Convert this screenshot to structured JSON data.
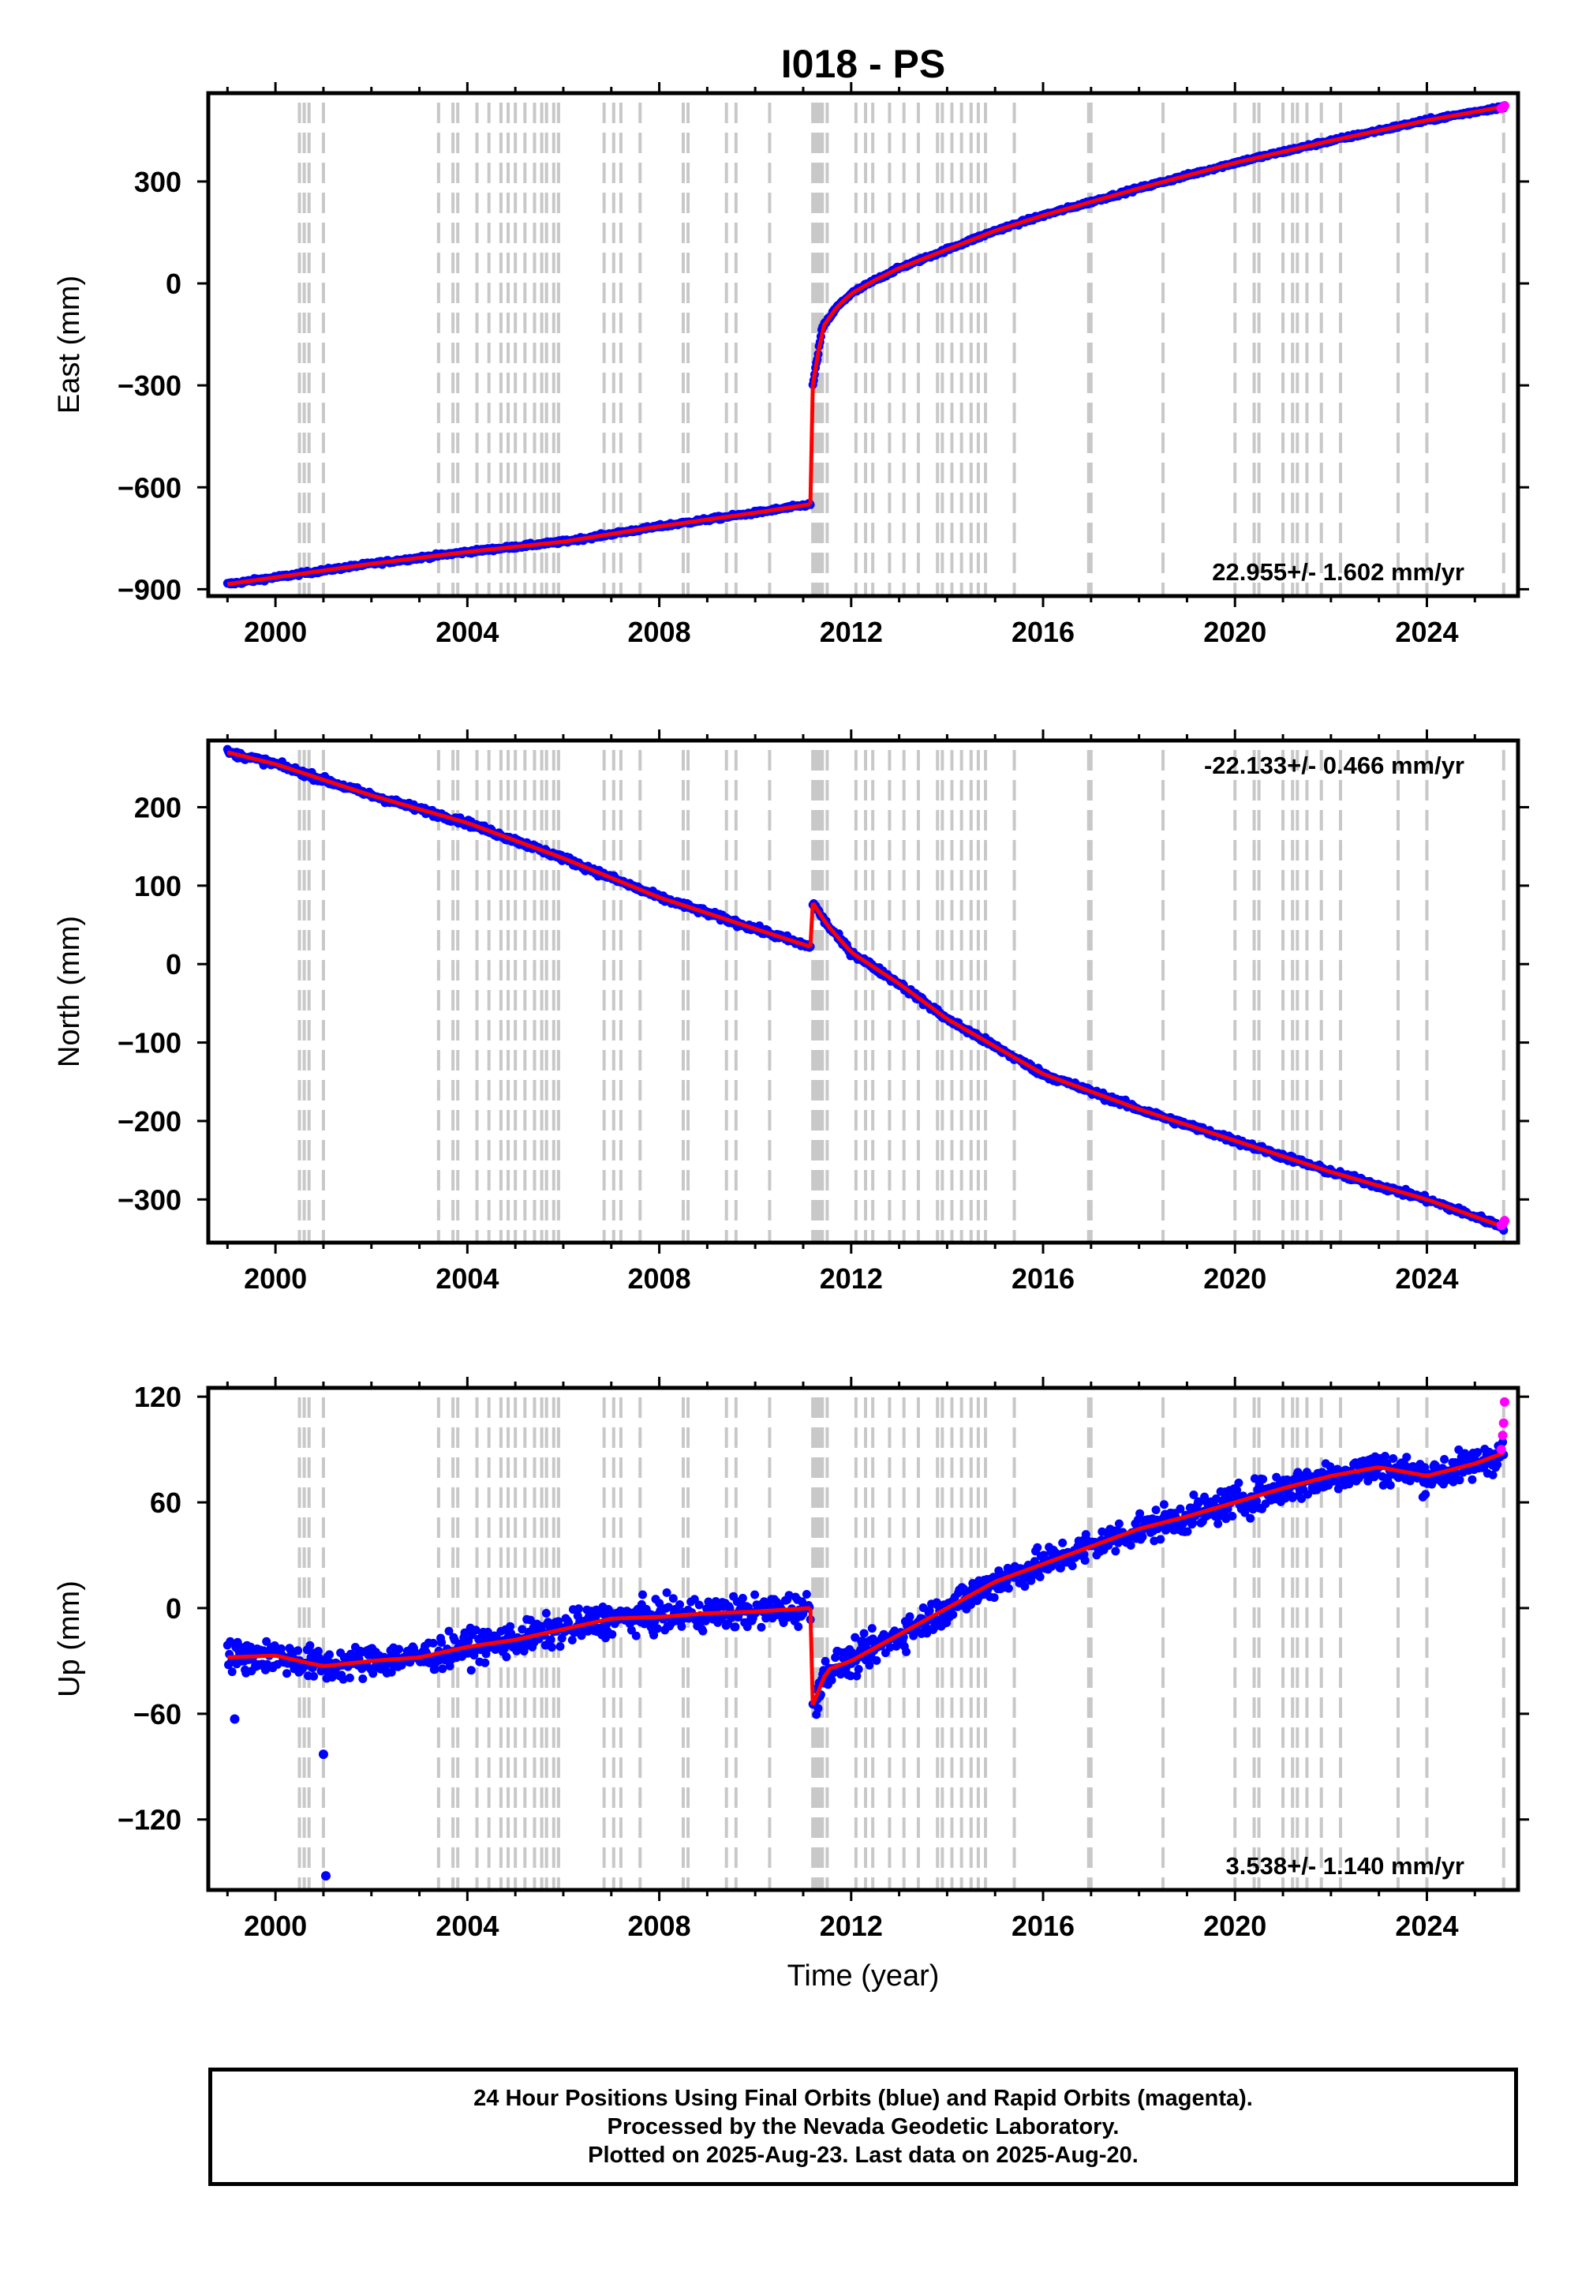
{
  "title": "I018 - PS",
  "xlabel": "Time (year)",
  "footer": {
    "line1": "24 Hour Positions Using Final Orbits (blue) and Rapid Orbits (magenta).",
    "line2": "Processed by the Nevada Geodetic Laboratory.",
    "line3": "Plotted on 2025-Aug-23. Last data on 2025-Aug-20."
  },
  "colors": {
    "final_orbits": "#0000ff",
    "rapid_orbits": "#ff00ff",
    "model": "#ff0000",
    "event_lines": "#c8c8c8"
  },
  "chart_data": [
    {
      "type": "scatter",
      "name": "east",
      "ylabel": "East (mm)",
      "rate_label": "22.955+/- 1.602 mm/yr",
      "rate_position": "bottom-right",
      "xlim": [
        1998.6,
        2025.9
      ],
      "ylim": [
        -920,
        560
      ],
      "yticks": [
        -900,
        -600,
        -300,
        0,
        300
      ],
      "ytick_labels": [
        "−900",
        "−600",
        "−300",
        "0",
        "300"
      ],
      "xticks": [
        2000,
        2004,
        2008,
        2012,
        2016,
        2020,
        2024
      ],
      "xtick_labels": [
        "2000",
        "2004",
        "2008",
        "2012",
        "2016",
        "2020",
        "2024"
      ],
      "series_curve": {
        "pre_x": [
          1999.0,
          2000.0,
          2002.0,
          2004.0,
          2006.0,
          2008.0,
          2010.0,
          2011.15
        ],
        "pre_y": [
          -885,
          -865,
          -825,
          -790,
          -760,
          -715,
          -675,
          -650
        ],
        "post_x": [
          2011.2,
          2011.4,
          2011.7,
          2012.0,
          2012.5,
          2013.0,
          2014.0,
          2015.0,
          2016.0,
          2018.0,
          2020.0,
          2022.0,
          2024.0,
          2025.6
        ],
        "post_y": [
          -300,
          -130,
          -70,
          -30,
          10,
          45,
          100,
          155,
          200,
          280,
          355,
          420,
          480,
          520
        ],
        "noise": 5
      },
      "rapid_points": {
        "x": [
          2025.55,
          2025.6,
          2025.62
        ],
        "y": [
          515,
          520,
          523
        ]
      }
    },
    {
      "type": "scatter",
      "name": "north",
      "ylabel": "North (mm)",
      "rate_label": "-22.133+/- 0.466 mm/yr",
      "rate_position": "top-right",
      "xlim": [
        1998.6,
        2025.9
      ],
      "ylim": [
        -355,
        285
      ],
      "yticks": [
        -300,
        -200,
        -100,
        0,
        100,
        200
      ],
      "ytick_labels": [
        "−300",
        "−200",
        "−100",
        "0",
        "100",
        "200"
      ],
      "xticks": [
        2000,
        2004,
        2008,
        2012,
        2016,
        2020,
        2024
      ],
      "xtick_labels": [
        "2000",
        "2004",
        "2008",
        "2012",
        "2016",
        "2020",
        "2024"
      ],
      "series_curve": {
        "pre_x": [
          1999.0,
          2000.0,
          2002.0,
          2004.0,
          2006.0,
          2008.0,
          2010.0,
          2011.15
        ],
        "pre_y": [
          270,
          255,
          215,
          180,
          135,
          85,
          45,
          22
        ],
        "post_x": [
          2011.2,
          2011.5,
          2012.0,
          2013.0,
          2014.0,
          2016.0,
          2018.0,
          2020.0,
          2022.0,
          2024.0,
          2025.6
        ],
        "post_y": [
          78,
          50,
          15,
          -25,
          -70,
          -140,
          -185,
          -225,
          -265,
          -300,
          -335
        ],
        "noise": 4
      },
      "rapid_points": {
        "x": [
          2025.55,
          2025.6,
          2025.62
        ],
        "y": [
          -333,
          -330,
          -327
        ]
      }
    },
    {
      "type": "scatter",
      "name": "up",
      "ylabel": "Up (mm)",
      "rate_label": "3.538+/- 1.140 mm/yr",
      "rate_position": "bottom-right",
      "xlim": [
        1998.6,
        2025.9
      ],
      "ylim": [
        -160,
        125
      ],
      "yticks": [
        -120,
        -60,
        0,
        60,
        120
      ],
      "ytick_labels": [
        "−120",
        "−60",
        "0",
        "60",
        "120"
      ],
      "xticks": [
        2000,
        2004,
        2008,
        2012,
        2016,
        2020,
        2024
      ],
      "xtick_labels": [
        "2000",
        "2004",
        "2008",
        "2012",
        "2016",
        "2020",
        "2024"
      ],
      "series_curve": {
        "pre_x": [
          1999.0,
          2000.0,
          2001.0,
          2002.0,
          2003.0,
          2004.0,
          2005.0,
          2006.0,
          2007.0,
          2008.0,
          2009.0,
          2010.0,
          2011.15
        ],
        "pre_y": [
          -28,
          -27,
          -33,
          -30,
          -28,
          -22,
          -18,
          -12,
          -6,
          -5,
          -3,
          -2,
          0
        ],
        "post_x": [
          2011.2,
          2011.5,
          2012.0,
          2013.0,
          2014.0,
          2015.0,
          2016.0,
          2017.0,
          2018.0,
          2019.0,
          2020.0,
          2021.0,
          2022.0,
          2023.0,
          2024.0,
          2025.0,
          2025.6
        ],
        "post_y": [
          -55,
          -35,
          -30,
          -15,
          0,
          15,
          25,
          35,
          45,
          52,
          60,
          68,
          75,
          80,
          75,
          82,
          88
        ],
        "noise": 9
      },
      "outliers": {
        "x": [
          1999.15,
          2001.0,
          2001.05
        ],
        "y": [
          -63,
          -83,
          -152
        ]
      },
      "rapid_points": {
        "x": [
          2025.55,
          2025.58,
          2025.6,
          2025.62
        ],
        "y": [
          90,
          98,
          105,
          117
        ]
      }
    }
  ],
  "event_lines_x": [
    2000.5,
    2000.6,
    2000.7,
    2001.0,
    2003.4,
    2003.7,
    2003.8,
    2004.2,
    2004.45,
    2004.7,
    2004.85,
    2005.0,
    2005.2,
    2005.4,
    2005.55,
    2005.65,
    2005.8,
    2005.9,
    2006.85,
    2007.05,
    2007.2,
    2007.6,
    2008.5,
    2008.6,
    2009.4,
    2009.6,
    2010.3,
    2011.2,
    2011.25,
    2011.3,
    2011.35,
    2011.4,
    2011.5,
    2012.1,
    2012.3,
    2012.45,
    2012.8,
    2013.1,
    2013.4,
    2013.8,
    2013.9,
    2014.1,
    2014.3,
    2014.5,
    2014.65,
    2014.8,
    2015.4,
    2016.95,
    2017.0,
    2018.5,
    2020.0,
    2020.4,
    2020.5,
    2021.0,
    2021.2,
    2021.3,
    2021.5,
    2021.8,
    2022.2,
    2023.4,
    2024.0,
    2025.6
  ]
}
